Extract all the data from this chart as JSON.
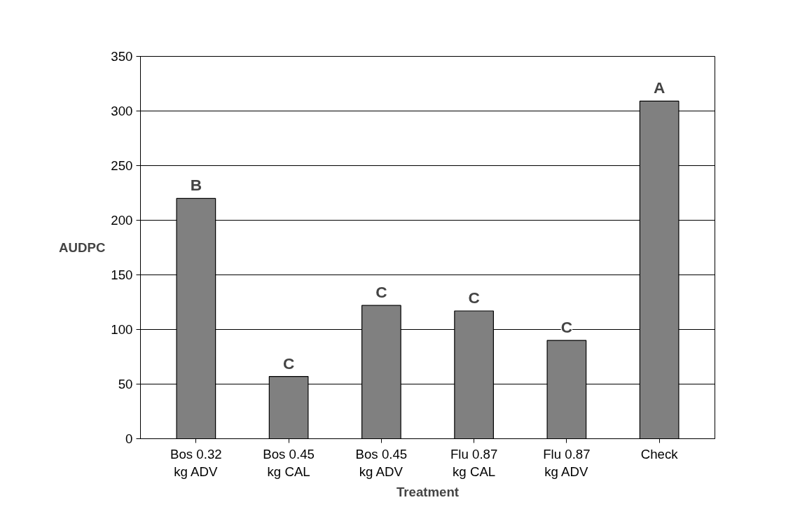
{
  "chart_data": {
    "type": "bar",
    "xlabel": "Treatment",
    "ylabel": "AUDPC",
    "categories": [
      "Bos 0.32\nkg ADV",
      "Bos 0.45\nkg CAL",
      "Bos 0.45\nkg ADV",
      "Flu 0.87\nkg CAL",
      "Flu 0.87\nkg ADV",
      "Check"
    ],
    "values": [
      220,
      57,
      122,
      117,
      90,
      309
    ],
    "value_labels": [
      "B",
      "C",
      "C",
      "C",
      "C",
      "A"
    ],
    "color": "#808080",
    "ylim": [
      0,
      350
    ],
    "yticks": [
      0,
      50,
      100,
      150,
      200,
      250,
      300,
      350
    ],
    "grid": "y"
  }
}
